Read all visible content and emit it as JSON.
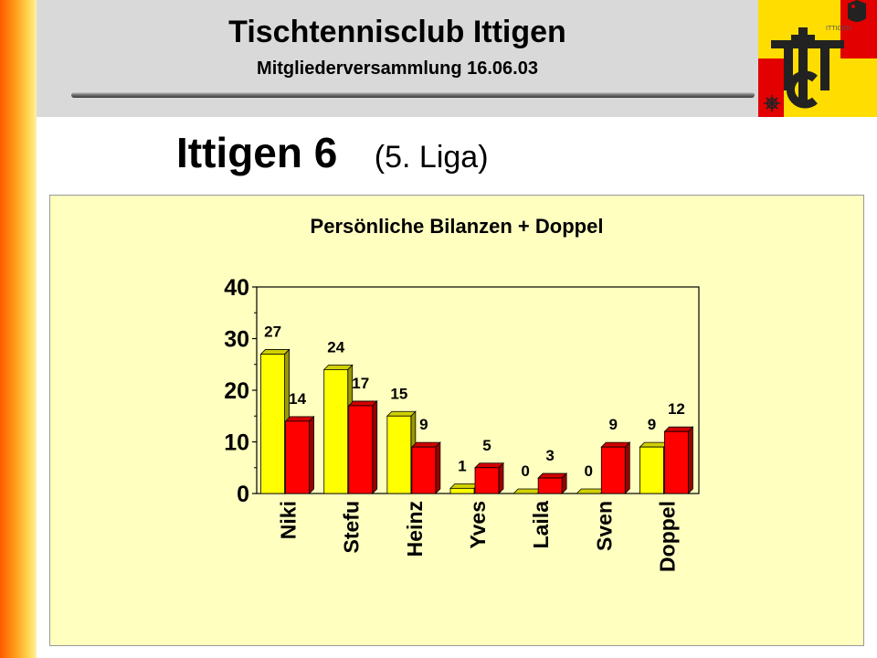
{
  "header": {
    "title": "Tischtennisclub Ittigen",
    "subtitle": "Mitgliederversammlung 16.06.03"
  },
  "logo": {
    "icon": "ttc-ittigen-logo",
    "text": "TTC",
    "small_text": "ITTIGEN",
    "colors": {
      "yellow": "#ffdd00",
      "red": "#e20000",
      "dark": "#222222"
    }
  },
  "slide": {
    "title": "Ittigen 6",
    "subtitle": "(5. Liga)"
  },
  "chart_data": {
    "type": "bar",
    "title": "Persönliche Bilanzen + Doppel",
    "categories": [
      "Niki",
      "Stefu",
      "Heinz",
      "Yves",
      "Laila",
      "Sven",
      "Doppel"
    ],
    "series": [
      {
        "values": [
          27,
          24,
          15,
          1,
          0,
          0,
          9
        ],
        "color": "#ffff00"
      },
      {
        "values": [
          14,
          17,
          9,
          5,
          3,
          9,
          12
        ],
        "color": "#ff0000"
      }
    ],
    "ylim": [
      0,
      40
    ],
    "yticks": [
      "0",
      "10",
      "20",
      "30",
      "40"
    ],
    "grid": false,
    "legend": "none",
    "style": "3d-bars",
    "data_labels": true
  }
}
